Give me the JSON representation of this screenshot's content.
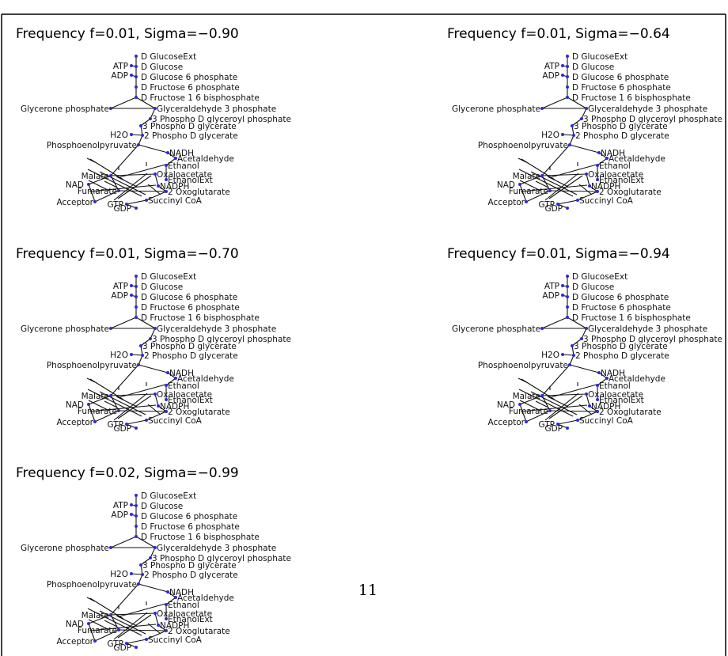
{
  "page": {
    "panels": [
      {
        "title": "Frequency f=0.01, Sigma=−0.90"
      },
      {
        "title": "Frequency f=0.01, Sigma=−0.64"
      },
      {
        "title": "Frequency f=0.01, Sigma=−0.70"
      },
      {
        "title": "Frequency f=0.01, Sigma=−0.94"
      },
      {
        "title": "Frequency f=0.02, Sigma=−0.99"
      }
    ],
    "nodes": [
      {
        "label": "D GlucoseExt"
      },
      {
        "label": "ATP"
      },
      {
        "label": "D Glucose"
      },
      {
        "label": "ADP"
      },
      {
        "label": "D Glucose 6 phosphate"
      },
      {
        "label": "D Fructose 6 phosphate"
      },
      {
        "label": "D Fructose 1 6 bisphosphate"
      },
      {
        "label": "Glycerone phosphate"
      },
      {
        "label": "Glyceraldehyde 3 phosphate"
      },
      {
        "label": "3 Phospho D glyceroyl phosphate"
      },
      {
        "label": "3 Phospho D glycerate"
      },
      {
        "label": "H2O"
      },
      {
        "label": "2 Phospho D glycerate"
      },
      {
        "label": "Phosphoenolpyruvate"
      },
      {
        "label": "NADH"
      },
      {
        "label": "Acetaldehyde"
      },
      {
        "label": "Ethanol"
      },
      {
        "label": "Malate"
      },
      {
        "label": "Oxaloacetate"
      },
      {
        "label": "EthanolExt"
      },
      {
        "label": "NADPH"
      },
      {
        "label": "NAD"
      },
      {
        "label": "Fumarate"
      },
      {
        "label": "2 Oxoglutarate"
      },
      {
        "label": "Succinyl CoA"
      },
      {
        "label": "Acceptor"
      },
      {
        "label": "GTP"
      },
      {
        "label": "GDP"
      }
    ],
    "page_number": "11"
  }
}
